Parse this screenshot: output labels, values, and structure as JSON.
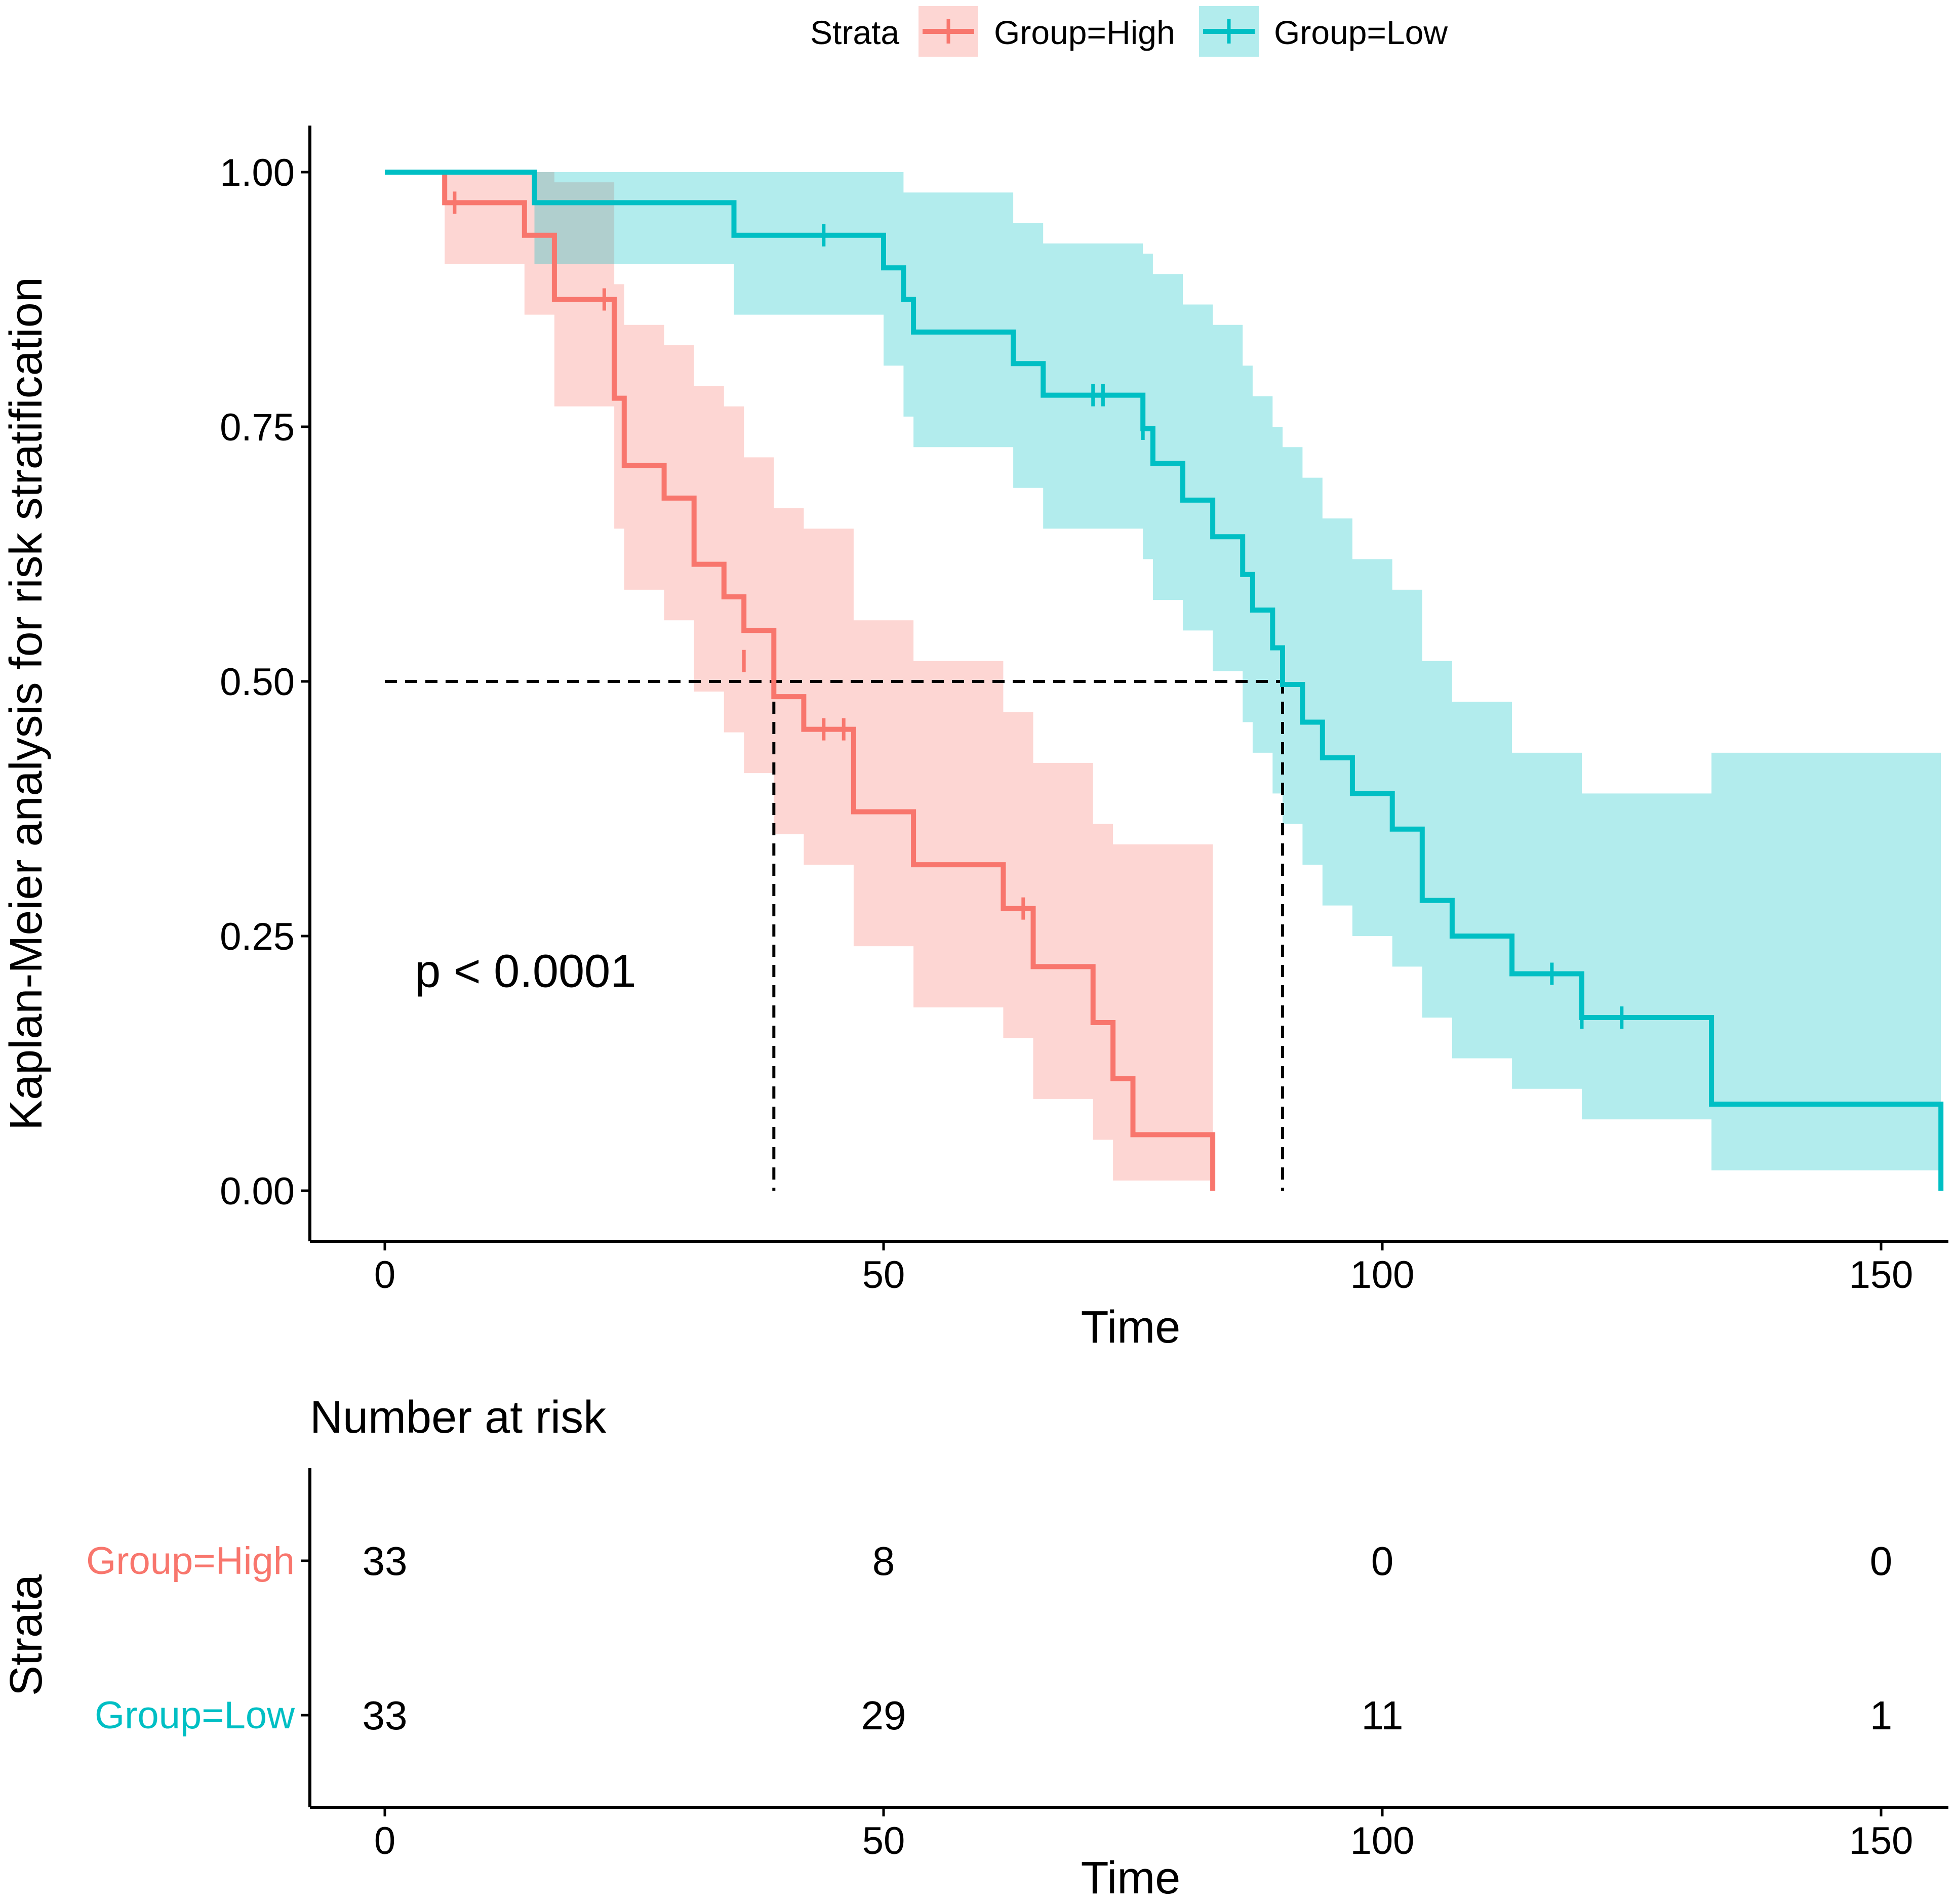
{
  "chart_data": {
    "type": "kaplan-meier",
    "legend": {
      "title": "Strata",
      "position": "top",
      "entries": [
        "Group=High",
        "Group=Low"
      ]
    },
    "ylabel": "Kaplan-Meier analysis for risk stratification",
    "xlabel": "Time",
    "xlim": [
      0,
      155
    ],
    "ylim": [
      0,
      1
    ],
    "x_ticks": [
      0,
      50,
      100,
      150
    ],
    "y_ticks": [
      "0.00",
      "0.25",
      "0.50",
      "0.75",
      "1.00"
    ],
    "y_tick_values": [
      0,
      0.25,
      0.5,
      0.75,
      1.0
    ],
    "annotation": "p < 0.0001",
    "annotation_pos": [
      3,
      0.2
    ],
    "median_line_y": 0.5,
    "medians": [
      39,
      90
    ],
    "series": [
      {
        "name": "Group=High",
        "color": "#F8766D",
        "band_color": "#F8766D",
        "steps": [
          [
            0,
            1.0
          ],
          [
            6,
            0.97
          ],
          [
            14,
            0.938
          ],
          [
            17,
            0.875
          ],
          [
            23,
            0.778
          ],
          [
            24,
            0.712
          ],
          [
            28,
            0.68
          ],
          [
            31,
            0.615
          ],
          [
            34,
            0.583
          ],
          [
            36,
            0.55
          ],
          [
            39,
            0.485
          ],
          [
            42,
            0.453
          ],
          [
            47,
            0.372
          ],
          [
            53,
            0.32
          ],
          [
            62,
            0.277
          ],
          [
            65,
            0.22
          ],
          [
            71,
            0.165
          ],
          [
            73,
            0.11
          ],
          [
            75,
            0.055
          ],
          [
            83,
            0.0
          ]
        ],
        "upper": [
          [
            0,
            1.0
          ],
          [
            6,
            1.0
          ],
          [
            14,
            1.0
          ],
          [
            17,
            0.99
          ],
          [
            23,
            0.89
          ],
          [
            24,
            0.85
          ],
          [
            28,
            0.83
          ],
          [
            31,
            0.79
          ],
          [
            34,
            0.77
          ],
          [
            36,
            0.72
          ],
          [
            39,
            0.67
          ],
          [
            42,
            0.65
          ],
          [
            47,
            0.56
          ],
          [
            53,
            0.52
          ],
          [
            62,
            0.47
          ],
          [
            65,
            0.42
          ],
          [
            71,
            0.36
          ],
          [
            73,
            0.34
          ],
          [
            75,
            0.34
          ],
          [
            83,
            0.34
          ]
        ],
        "lower": [
          [
            0,
            1.0
          ],
          [
            6,
            0.91
          ],
          [
            14,
            0.86
          ],
          [
            17,
            0.77
          ],
          [
            23,
            0.65
          ],
          [
            24,
            0.59
          ],
          [
            28,
            0.56
          ],
          [
            31,
            0.49
          ],
          [
            34,
            0.45
          ],
          [
            36,
            0.41
          ],
          [
            39,
            0.35
          ],
          [
            42,
            0.32
          ],
          [
            47,
            0.24
          ],
          [
            53,
            0.18
          ],
          [
            62,
            0.15
          ],
          [
            65,
            0.09
          ],
          [
            71,
            0.05
          ],
          [
            73,
            0.01
          ],
          [
            75,
            0.01
          ],
          [
            83,
            0.01
          ]
        ],
        "censored": [
          [
            7,
            0.97
          ],
          [
            22,
            0.875
          ],
          [
            36,
            0.52
          ],
          [
            44,
            0.453
          ],
          [
            46,
            0.453
          ],
          [
            64,
            0.277
          ]
        ]
      },
      {
        "name": "Group=Low",
        "color": "#00BFC4",
        "band_color": "#00BFC4",
        "steps": [
          [
            0,
            1.0
          ],
          [
            15,
            0.97
          ],
          [
            35,
            0.938
          ],
          [
            43,
            0.938
          ],
          [
            50,
            0.906
          ],
          [
            52,
            0.875
          ],
          [
            53,
            0.843
          ],
          [
            63,
            0.812
          ],
          [
            66,
            0.781
          ],
          [
            76,
            0.748
          ],
          [
            77,
            0.714
          ],
          [
            80,
            0.678
          ],
          [
            83,
            0.642
          ],
          [
            86,
            0.605
          ],
          [
            87,
            0.57
          ],
          [
            89,
            0.533
          ],
          [
            90,
            0.497
          ],
          [
            92,
            0.46
          ],
          [
            94,
            0.425
          ],
          [
            97,
            0.39
          ],
          [
            101,
            0.355
          ],
          [
            104,
            0.285
          ],
          [
            107,
            0.25
          ],
          [
            113,
            0.213
          ],
          [
            120,
            0.17
          ],
          [
            133,
            0.085
          ],
          [
            156,
            0.0
          ]
        ],
        "upper": [
          [
            0,
            1.0
          ],
          [
            15,
            1.0
          ],
          [
            35,
            1.0
          ],
          [
            43,
            1.0
          ],
          [
            50,
            1.0
          ],
          [
            52,
            0.98
          ],
          [
            53,
            0.98
          ],
          [
            63,
            0.95
          ],
          [
            66,
            0.93
          ],
          [
            76,
            0.92
          ],
          [
            77,
            0.9
          ],
          [
            80,
            0.87
          ],
          [
            83,
            0.85
          ],
          [
            86,
            0.81
          ],
          [
            87,
            0.78
          ],
          [
            89,
            0.75
          ],
          [
            90,
            0.73
          ],
          [
            92,
            0.7
          ],
          [
            94,
            0.66
          ],
          [
            97,
            0.62
          ],
          [
            101,
            0.59
          ],
          [
            104,
            0.52
          ],
          [
            107,
            0.48
          ],
          [
            113,
            0.43
          ],
          [
            120,
            0.39
          ],
          [
            133,
            0.43
          ],
          [
            156,
            0.43
          ]
        ],
        "lower": [
          [
            0,
            1.0
          ],
          [
            15,
            0.91
          ],
          [
            35,
            0.86
          ],
          [
            43,
            0.86
          ],
          [
            50,
            0.81
          ],
          [
            52,
            0.76
          ],
          [
            53,
            0.73
          ],
          [
            63,
            0.69
          ],
          [
            66,
            0.65
          ],
          [
            76,
            0.62
          ],
          [
            77,
            0.58
          ],
          [
            80,
            0.55
          ],
          [
            83,
            0.51
          ],
          [
            86,
            0.46
          ],
          [
            87,
            0.43
          ],
          [
            89,
            0.39
          ],
          [
            90,
            0.36
          ],
          [
            92,
            0.32
          ],
          [
            94,
            0.28
          ],
          [
            97,
            0.25
          ],
          [
            101,
            0.22
          ],
          [
            104,
            0.17
          ],
          [
            107,
            0.13
          ],
          [
            113,
            0.1
          ],
          [
            120,
            0.07
          ],
          [
            133,
            0.02
          ],
          [
            156,
            0.02
          ]
        ],
        "censored": [
          [
            44,
            0.938
          ],
          [
            71,
            0.781
          ],
          [
            72,
            0.781
          ],
          [
            76,
            0.748
          ],
          [
            117,
            0.213
          ],
          [
            120,
            0.17
          ],
          [
            124,
            0.17
          ]
        ]
      }
    ],
    "risk_table": {
      "title": "Number at risk",
      "ylabel": "Strata",
      "xlabel": "Time",
      "times": [
        0,
        50,
        100,
        150
      ],
      "rows": [
        {
          "name": "Group=High",
          "color": "#F8766D",
          "values": [
            "33",
            "8",
            "0",
            "0"
          ]
        },
        {
          "name": "Group=Low",
          "color": "#00BFC4",
          "values": [
            "33",
            "29",
            "11",
            "1"
          ]
        }
      ]
    }
  }
}
